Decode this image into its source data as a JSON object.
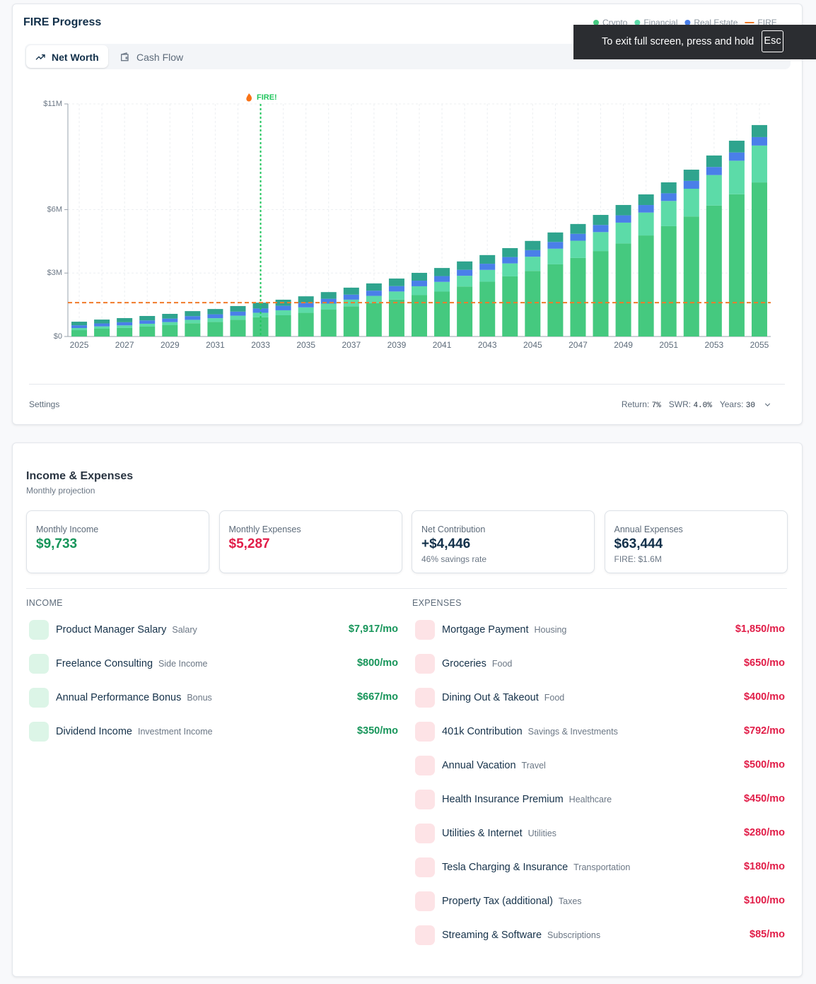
{
  "header": {
    "title": "FIRE Progress",
    "tabs": [
      "Net Worth",
      "Cash Flow"
    ]
  },
  "fullscreen_notice": {
    "text": "To exit full screen, press and hold",
    "key": "Esc"
  },
  "chart_data": {
    "type": "bar",
    "stacked": true,
    "categories": [
      "2025",
      null,
      "2027",
      null,
      "2029",
      null,
      "2031",
      null,
      "2033",
      null,
      "2035",
      null,
      "2037",
      null,
      "2039",
      null,
      "2041",
      null,
      "2043",
      null,
      "2045",
      null,
      "2047",
      null,
      "2049",
      null,
      "2051",
      null,
      "2053",
      null,
      "2055"
    ],
    "series": [
      {
        "name": "Crypto",
        "color": "#45c97f",
        "values": [
          300000,
          368000,
          404000,
          470000,
          535000,
          627000,
          689000,
          789000,
          908000,
          1003000,
          1118000,
          1270000,
          1428000,
          1575000,
          1748000,
          1957000,
          2124000,
          2366000,
          2593000,
          2844000,
          3101000,
          3412000,
          3715000,
          4042000,
          4400000,
          4779000,
          5218000,
          5677000,
          6194000,
          6727000,
          7286000
        ]
      },
      {
        "name": "Financial",
        "color": "#5cdba8",
        "values": [
          100000,
          110000,
          121000,
          133000,
          146000,
          161000,
          177000,
          195000,
          214000,
          236000,
          259000,
          285000,
          314000,
          345000,
          380000,
          418000,
          459000,
          505000,
          556000,
          612000,
          673000,
          740000,
          814000,
          895000,
          985000,
          1083000,
          1192000,
          1311000,
          1442000,
          1586000,
          1745000
        ]
      },
      {
        "name": "Real Estate",
        "color": "#4a7fe9",
        "values": [
          130000,
          139000,
          148000,
          157000,
          166000,
          175000,
          184000,
          193000,
          202000,
          211000,
          220000,
          229000,
          238000,
          247000,
          256000,
          265000,
          274000,
          283000,
          292000,
          301000,
          310000,
          319000,
          328000,
          337000,
          346000,
          355000,
          364000,
          373000,
          382000,
          391000,
          400000
        ]
      },
      {
        "color": "#2fa48e",
        "values": [
          170000,
          183000,
          197000,
          210000,
          223000,
          237000,
          250000,
          263000,
          276000,
          290000,
          303000,
          316000,
          330000,
          343000,
          356000,
          370000,
          383000,
          396000,
          409000,
          423000,
          436000,
          449000,
          463000,
          476000,
          489000,
          503000,
          516000,
          529000,
          542000,
          556000,
          569000
        ]
      }
    ],
    "reference_line": {
      "name": "FIRE",
      "value": 1600000,
      "color": "#f07a2a"
    },
    "annotation": {
      "text": "FIRE!",
      "category": "2033",
      "color": "#22c55e"
    },
    "ylim": [
      0,
      11000000
    ],
    "yticks": [
      {
        "value": 0,
        "label": "$0"
      },
      {
        "value": 3000000,
        "label": "$3M"
      },
      {
        "value": 6000000,
        "label": "$6M"
      },
      {
        "value": 11000000,
        "label": "$11M"
      }
    ],
    "grid": true
  },
  "settings": {
    "label": "Settings",
    "params": [
      {
        "label": "Return:",
        "value": "7%"
      },
      {
        "label": "SWR:",
        "value": "4.0%"
      },
      {
        "label": "Years:",
        "value": "30"
      }
    ]
  },
  "budget": {
    "title": "Income & Expenses",
    "subtitle": "Monthly projection",
    "stats": [
      {
        "label": "Monthly Income",
        "value": "$9,733",
        "tone": "income"
      },
      {
        "label": "Monthly Expenses",
        "value": "$5,287",
        "tone": "expense"
      },
      {
        "label": "Net Contribution",
        "value": "+$4,446",
        "note": "46% savings rate"
      },
      {
        "label": "Annual Expenses",
        "value": "$63,444",
        "note": "FIRE: $1.6M"
      }
    ],
    "income": {
      "title": "INCOME",
      "items": [
        {
          "name": "Product Manager Salary",
          "category": "Salary",
          "amount": "$7,917/mo"
        },
        {
          "name": "Freelance Consulting",
          "category": "Side Income",
          "amount": "$800/mo"
        },
        {
          "name": "Annual Performance Bonus",
          "category": "Bonus",
          "amount": "$667/mo"
        },
        {
          "name": "Dividend Income",
          "category": "Investment Income",
          "amount": "$350/mo"
        }
      ]
    },
    "expenses": {
      "title": "EXPENSES",
      "items": [
        {
          "name": "Mortgage Payment",
          "category": "Housing",
          "amount": "$1,850/mo"
        },
        {
          "name": "Groceries",
          "category": "Food",
          "amount": "$650/mo"
        },
        {
          "name": "Dining Out & Takeout",
          "category": "Food",
          "amount": "$400/mo"
        },
        {
          "name": "401k Contribution",
          "category": "Savings & Investments",
          "amount": "$792/mo"
        },
        {
          "name": "Annual Vacation",
          "category": "Travel",
          "amount": "$500/mo"
        },
        {
          "name": "Health Insurance Premium",
          "category": "Healthcare",
          "amount": "$450/mo"
        },
        {
          "name": "Utilities & Internet",
          "category": "Utilities",
          "amount": "$280/mo"
        },
        {
          "name": "Tesla Charging & Insurance",
          "category": "Transportation",
          "amount": "$180/mo"
        },
        {
          "name": "Property Tax (additional)",
          "category": "Taxes",
          "amount": "$100/mo"
        },
        {
          "name": "Streaming & Software",
          "category": "Subscriptions",
          "amount": "$85/mo"
        }
      ]
    }
  }
}
